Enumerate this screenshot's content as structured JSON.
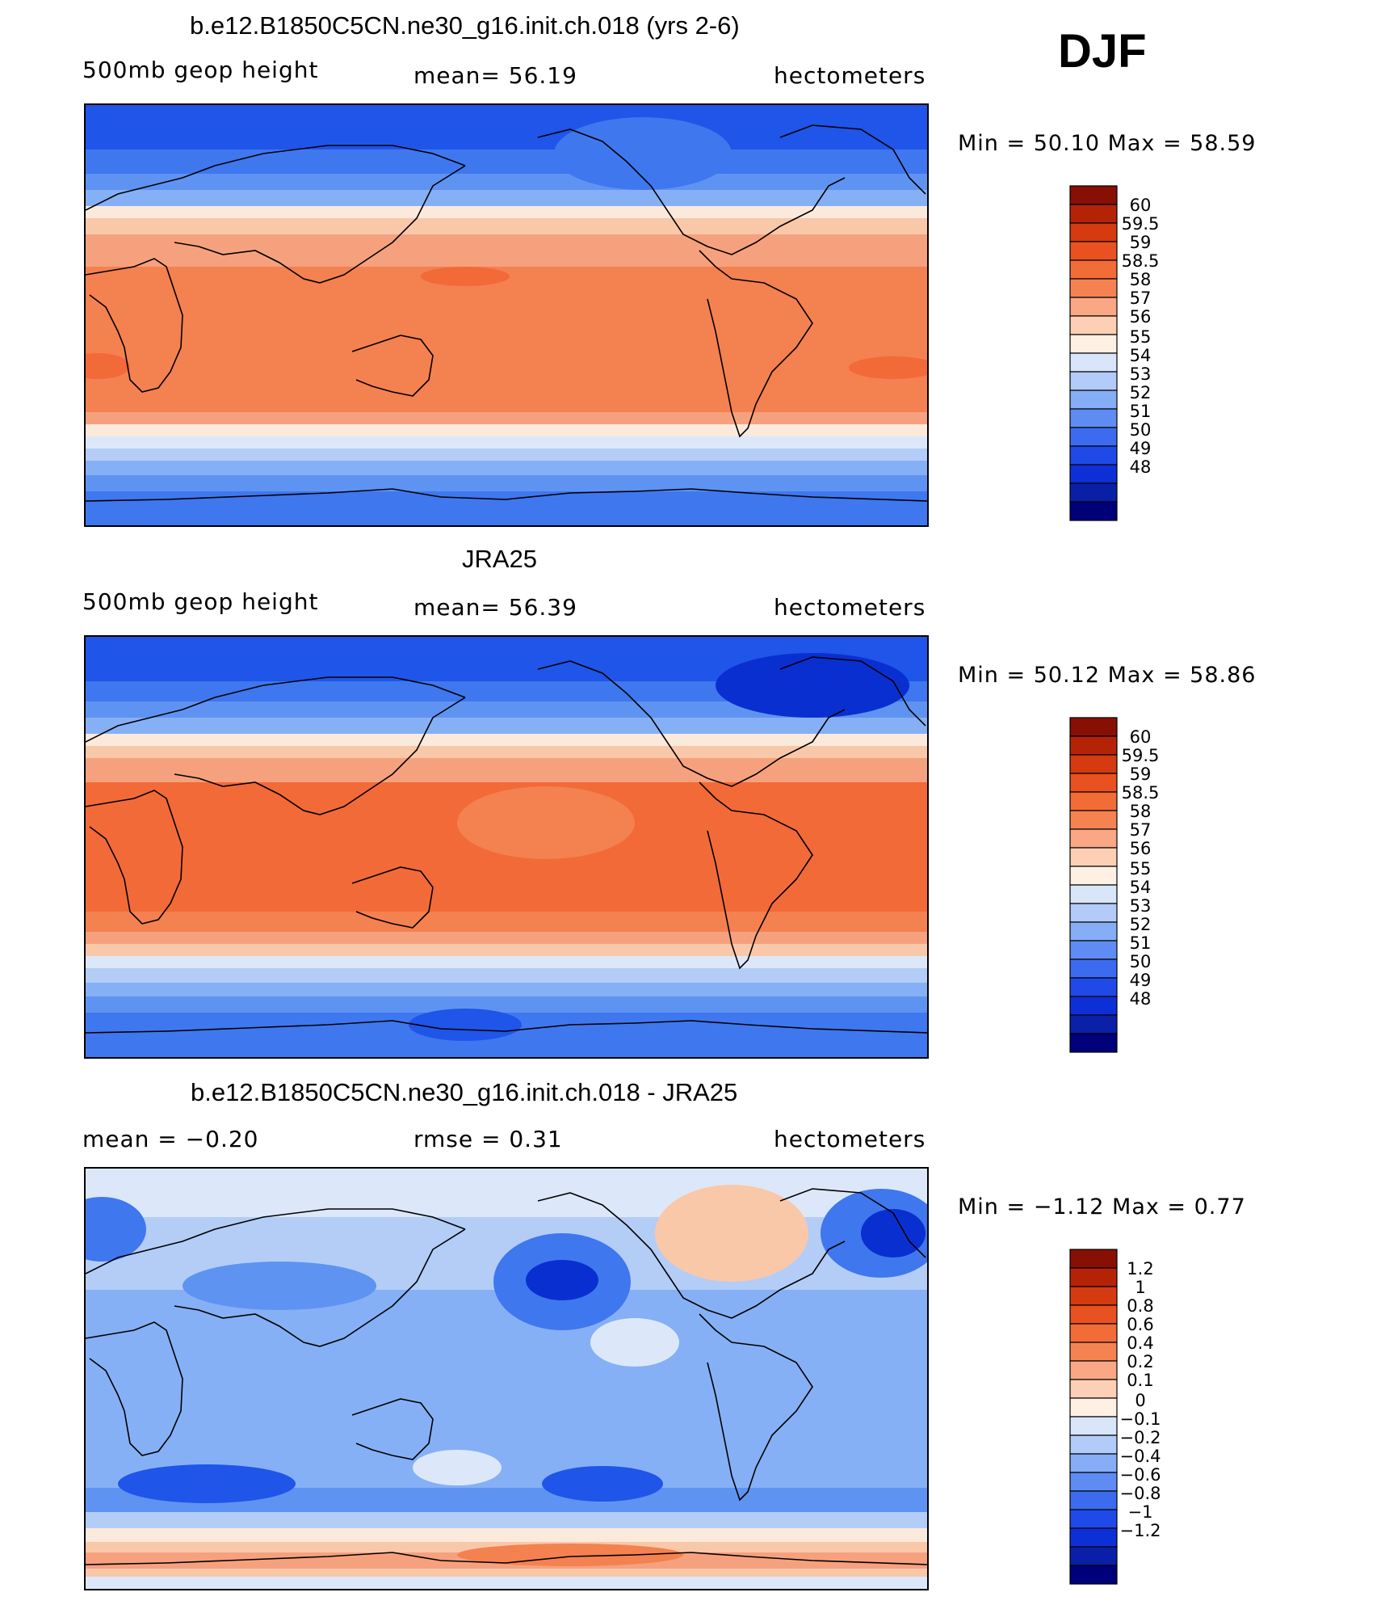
{
  "season": "DJF",
  "units": "hectometers",
  "colors": {
    "model": [
      "#0a2fd0",
      "#1f55e8",
      "#3f77ef",
      "#5f93f2",
      "#86b0f5",
      "#b3cdf7",
      "#dce8f9",
      "#fbe9dc",
      "#f9c8a9",
      "#f6a17e",
      "#f48150",
      "#f26a38",
      "#e8521f",
      "#d83a12",
      "#b81e08",
      "#8c0f04"
    ],
    "legend": [
      "#00007a",
      "#0a1fa8",
      "#0d2fd6",
      "#1f4ae8",
      "#3c6bef",
      "#5f8cf3",
      "#86aef6",
      "#b2cbf8",
      "#d9e6fa",
      "#fff0e4",
      "#fdd0b6",
      "#f9a784",
      "#f58352",
      "#f26c38",
      "#e95220",
      "#d53a10",
      "#b52306",
      "#880f04"
    ]
  },
  "panels": [
    {
      "title": "b.e12.B1850C5CN.ne30_g16.init.ch.018 (yrs 2-6)",
      "left_label": "500mb geop height",
      "stat1": "mean=  56.19",
      "stat2": "",
      "units": "hectometers",
      "minmax": "Min =   50.10  Max =   58.59",
      "legend_labels": [
        "60",
        "59.5",
        "59",
        "58.5",
        "58",
        "57",
        "56",
        "55",
        "54",
        "53",
        "52",
        "51",
        "50",
        "49",
        "48"
      ]
    },
    {
      "title": "JRA25",
      "left_label": "500mb geop height",
      "stat1": "mean=  56.39",
      "stat2": "",
      "units": "hectometers",
      "minmax": "Min =   50.12  Max =   58.86",
      "legend_labels": [
        "60",
        "59.5",
        "59",
        "58.5",
        "58",
        "57",
        "56",
        "55",
        "54",
        "53",
        "52",
        "51",
        "50",
        "49",
        "48"
      ]
    },
    {
      "title": "b.e12.B1850C5CN.ne30_g16.init.ch.018 - JRA25",
      "left_label": "mean =   −0.20",
      "stat1": "rmse =    0.31",
      "stat2": "",
      "units": "hectometers",
      "minmax": "Min =  −1.12  Max =    0.77",
      "legend_labels": [
        "1.2",
        "1",
        "0.8",
        "0.6",
        "0.4",
        "0.2",
        "0.1",
        "0",
        "−0.1",
        "−0.2",
        "−0.4",
        "−0.6",
        "−0.8",
        "−1",
        "−1.2"
      ]
    }
  ]
}
